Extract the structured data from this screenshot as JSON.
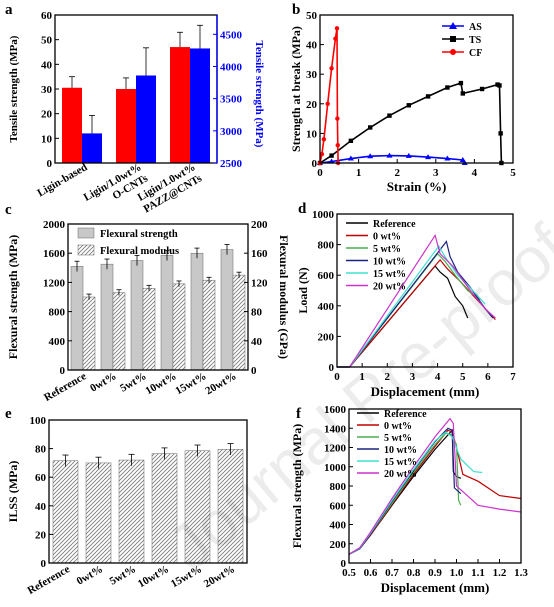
{
  "watermark": "Journal Pre-proof",
  "chart_data": [
    {
      "panel": "a",
      "type": "bar",
      "ylabel": "Tensile strength (MPa)",
      "y2label": "Tensile strength (MPa)",
      "ylim": [
        0,
        60
      ],
      "yticks": [
        "0",
        "10",
        "20",
        "30",
        "40",
        "50",
        "60"
      ],
      "y2lim": [
        2500,
        4800
      ],
      "y2ticks": [
        "2500",
        "3000",
        "3500",
        "4000",
        "4500"
      ],
      "categories": [
        {
          "lines": [
            "Ligin-based"
          ]
        },
        {
          "lines": [
            "Ligin/1.0wt%",
            "O-CNTs"
          ]
        },
        {
          "lines": [
            "Ligin/1.0wt%",
            "PAZZ@CNTs"
          ]
        }
      ],
      "series": [
        {
          "axis": "left",
          "color": "#ff0000",
          "values": [
            30.5,
            30,
            47
          ],
          "errors": [
            4.5,
            4.5,
            6
          ]
        },
        {
          "axis": "right",
          "color": "#0000ff",
          "values": [
            2960,
            3860,
            4280
          ],
          "errors": [
            280,
            430,
            360
          ]
        }
      ]
    },
    {
      "panel": "b",
      "type": "line",
      "xlabel": "Strain (%)",
      "ylabel": "Strength at break (MPa)",
      "xlim": [
        0,
        5
      ],
      "xticks": [
        "0",
        "1",
        "2",
        "3",
        "4",
        "5"
      ],
      "ylim": [
        0,
        50
      ],
      "yticks": [
        "0",
        "10",
        "20",
        "30",
        "40",
        "50"
      ],
      "series": [
        {
          "name": "AS",
          "color": "#0000ff",
          "marker": "triangle",
          "points": [
            [
              0,
              0
            ],
            [
              0.3,
              0.5
            ],
            [
              0.8,
              1.5
            ],
            [
              1.3,
              2.3
            ],
            [
              1.8,
              2.5
            ],
            [
              2.3,
              2.4
            ],
            [
              2.8,
              2.0
            ],
            [
              3.3,
              1.5
            ],
            [
              3.7,
              1.0
            ],
            [
              3.75,
              0
            ]
          ]
        },
        {
          "name": "TS",
          "color": "#000000",
          "marker": "square",
          "points": [
            [
              0,
              0
            ],
            [
              0.3,
              2.5
            ],
            [
              0.8,
              7.5
            ],
            [
              1.3,
              12
            ],
            [
              1.8,
              16
            ],
            [
              2.3,
              19.5
            ],
            [
              2.8,
              22.5
            ],
            [
              3.3,
              25.5
            ],
            [
              3.65,
              27
            ],
            [
              3.7,
              23.5
            ],
            [
              4.2,
              25
            ],
            [
              4.6,
              26.5
            ],
            [
              4.65,
              26.2
            ],
            [
              4.68,
              10
            ],
            [
              4.7,
              0
            ]
          ]
        },
        {
          "name": "CF",
          "color": "#ff0000",
          "marker": "circle",
          "points": [
            [
              0,
              0
            ],
            [
              0.05,
              3
            ],
            [
              0.1,
              8
            ],
            [
              0.2,
              20
            ],
            [
              0.3,
              32
            ],
            [
              0.4,
              42
            ],
            [
              0.44,
              45.5
            ],
            [
              0.45,
              15
            ],
            [
              0.46,
              6
            ],
            [
              0.47,
              0
            ]
          ]
        }
      ]
    },
    {
      "panel": "c",
      "type": "bar",
      "ylabel": "Flexural strength (MPa)",
      "y2label": "Flexural modulus (GPa)",
      "ylim": [
        0,
        2000
      ],
      "yticks": [
        "0",
        "400",
        "800",
        "1200",
        "1600",
        "2000"
      ],
      "y2lim": [
        0,
        200
      ],
      "y2ticks": [
        "0",
        "40",
        "80",
        "120",
        "160",
        "200"
      ],
      "categories": [
        "Reference",
        "0wt%",
        "5wt%",
        "10wt%",
        "15wt%",
        "20wt%"
      ],
      "series": [
        {
          "name": "Flexural strength",
          "axis": "left",
          "fill": "solid",
          "values": [
            1420,
            1450,
            1500,
            1570,
            1600,
            1650
          ],
          "errors": [
            70,
            70,
            70,
            70,
            70,
            70
          ]
        },
        {
          "name": "Flexural modulus",
          "axis": "right",
          "fill": "hatch",
          "values": [
            100,
            106,
            112,
            118,
            123,
            130
          ],
          "errors": [
            4,
            4,
            4,
            4,
            4,
            4
          ]
        }
      ]
    },
    {
      "panel": "d",
      "type": "line",
      "xlabel": "Displacement (mm)",
      "ylabel": "Load (N)",
      "xlim": [
        0,
        7
      ],
      "xticks": [
        "0",
        "1",
        "2",
        "3",
        "4",
        "5",
        "6",
        "7"
      ],
      "ylim": [
        0,
        1000
      ],
      "yticks": [
        "0",
        "200",
        "400",
        "600",
        "800",
        "1000"
      ],
      "series": [
        {
          "name": "Reference",
          "color": "#000000",
          "points": [
            [
              0,
              0
            ],
            [
              0.5,
              0
            ],
            [
              3.9,
              660
            ],
            [
              4.1,
              620
            ],
            [
              4.4,
              580
            ],
            [
              4.7,
              460
            ],
            [
              5.0,
              400
            ],
            [
              5.2,
              320
            ]
          ]
        },
        {
          "name": "0 wt%",
          "color": "#c00000",
          "points": [
            [
              0,
              0
            ],
            [
              0.5,
              0
            ],
            [
              4.1,
              700
            ],
            [
              4.4,
              640
            ],
            [
              4.9,
              560
            ],
            [
              5.4,
              470
            ],
            [
              5.8,
              400
            ],
            [
              6.3,
              310
            ]
          ]
        },
        {
          "name": "5 wt%",
          "color": "#4caf50",
          "points": [
            [
              0,
              0
            ],
            [
              0.5,
              0
            ],
            [
              4.0,
              740
            ],
            [
              4.3,
              690
            ],
            [
              4.7,
              600
            ],
            [
              5.2,
              500
            ],
            [
              5.7,
              440
            ]
          ]
        },
        {
          "name": "10 wt%",
          "color": "#1a237e",
          "points": [
            [
              0,
              0
            ],
            [
              0.5,
              0
            ],
            [
              4.35,
              820
            ],
            [
              4.5,
              720
            ],
            [
              4.8,
              620
            ],
            [
              5.3,
              520
            ],
            [
              5.9,
              380
            ],
            [
              6.2,
              320
            ]
          ]
        },
        {
          "name": "15 wt%",
          "color": "#40e0d0",
          "points": [
            [
              0,
              0
            ],
            [
              0.5,
              0
            ],
            [
              4.05,
              790
            ],
            [
              4.3,
              720
            ],
            [
              4.8,
              600
            ],
            [
              5.4,
              500
            ],
            [
              5.9,
              410
            ]
          ]
        },
        {
          "name": "20 wt%",
          "color": "#cc33cc",
          "points": [
            [
              0,
              0
            ],
            [
              0.5,
              0
            ],
            [
              3.9,
              860
            ],
            [
              4.1,
              740
            ],
            [
              4.6,
              660
            ],
            [
              5.3,
              500
            ],
            [
              5.9,
              380
            ],
            [
              6.3,
              320
            ]
          ]
        }
      ]
    },
    {
      "panel": "e",
      "type": "bar",
      "ylabel": "ILSS (MPa)",
      "ylim": [
        0,
        100
      ],
      "yticks": [
        "0",
        "20",
        "40",
        "60",
        "80",
        "100"
      ],
      "categories": [
        "Reference",
        "0wt%",
        "5wt%",
        "10wt%",
        "15wt%",
        "20wt%"
      ],
      "series": [
        {
          "fill": "hatch",
          "values": [
            71.5,
            70,
            72,
            76.5,
            78.5,
            79.5
          ],
          "errors": [
            4,
            4,
            4,
            4,
            4,
            4
          ]
        }
      ]
    },
    {
      "panel": "f",
      "type": "line",
      "xlabel": "Displacement (mm)",
      "ylabel": "Flexural strength (MPa)",
      "xlim": [
        0.5,
        1.3
      ],
      "xticks": [
        "0.5",
        "0.6",
        "0.7",
        "0.8",
        "0.9",
        "1.0",
        "1.1",
        "1.2",
        "1.3"
      ],
      "ylim": [
        0,
        1600
      ],
      "yticks": [
        "0",
        "200",
        "400",
        "600",
        "800",
        "1000",
        "1200",
        "1400",
        "1600"
      ],
      "series": [
        {
          "name": "Reference",
          "color": "#000000",
          "points": [
            [
              0.5,
              90
            ],
            [
              0.55,
              150
            ],
            [
              0.6,
              290
            ],
            [
              0.7,
              600
            ],
            [
              0.8,
              900
            ],
            [
              0.9,
              1180
            ],
            [
              0.96,
              1330
            ],
            [
              0.98,
              1380
            ],
            [
              0.985,
              950
            ],
            [
              1.0,
              900
            ],
            [
              1.02,
              880
            ]
          ]
        },
        {
          "name": "0 wt%",
          "color": "#c00000",
          "points": [
            [
              0.5,
              90
            ],
            [
              0.55,
              150
            ],
            [
              0.6,
              290
            ],
            [
              0.7,
              610
            ],
            [
              0.8,
              920
            ],
            [
              0.9,
              1210
            ],
            [
              0.96,
              1380
            ],
            [
              0.98,
              1360
            ],
            [
              1.0,
              1200
            ],
            [
              1.03,
              920
            ],
            [
              1.1,
              850
            ],
            [
              1.2,
              700
            ],
            [
              1.3,
              670
            ]
          ]
        },
        {
          "name": "5 wt%",
          "color": "#4caf50",
          "points": [
            [
              0.5,
              90
            ],
            [
              0.55,
              150
            ],
            [
              0.6,
              300
            ],
            [
              0.7,
              620
            ],
            [
              0.8,
              940
            ],
            [
              0.9,
              1230
            ],
            [
              0.95,
              1350
            ],
            [
              0.98,
              1330
            ],
            [
              1.0,
              1230
            ],
            [
              1.01,
              650
            ],
            [
              1.02,
              600
            ]
          ]
        },
        {
          "name": "10 wt%",
          "color": "#1a237e",
          "points": [
            [
              0.5,
              90
            ],
            [
              0.55,
              150
            ],
            [
              0.6,
              300
            ],
            [
              0.7,
              640
            ],
            [
              0.8,
              960
            ],
            [
              0.9,
              1260
            ],
            [
              0.96,
              1400
            ],
            [
              0.98,
              1380
            ],
            [
              0.99,
              780
            ],
            [
              1.02,
              720
            ]
          ]
        },
        {
          "name": "15 wt%",
          "color": "#40e0d0",
          "points": [
            [
              0.5,
              90
            ],
            [
              0.55,
              155
            ],
            [
              0.6,
              310
            ],
            [
              0.7,
              650
            ],
            [
              0.8,
              970
            ],
            [
              0.9,
              1270
            ],
            [
              0.95,
              1360
            ],
            [
              0.98,
              1310
            ],
            [
              1.02,
              1080
            ],
            [
              1.08,
              950
            ],
            [
              1.12,
              940
            ]
          ]
        },
        {
          "name": "20 wt%",
          "color": "#cc33cc",
          "points": [
            [
              0.5,
              90
            ],
            [
              0.55,
              160
            ],
            [
              0.6,
              320
            ],
            [
              0.7,
              670
            ],
            [
              0.8,
              1000
            ],
            [
              0.9,
              1310
            ],
            [
              0.97,
              1500
            ],
            [
              0.985,
              1450
            ],
            [
              1.0,
              800
            ],
            [
              1.05,
              700
            ],
            [
              1.1,
              600
            ],
            [
              1.2,
              560
            ],
            [
              1.3,
              530
            ]
          ]
        }
      ]
    }
  ]
}
